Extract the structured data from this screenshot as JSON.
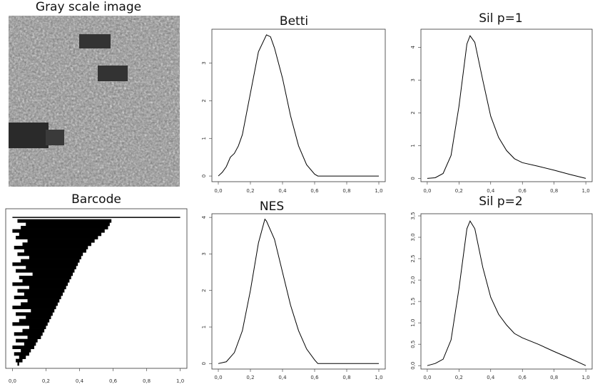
{
  "image": {
    "title": "Gray scale image"
  },
  "chart_data": [
    {
      "type": "barcode",
      "title": "Barcode",
      "births": [
        0.03,
        0.02,
        0.04,
        0.01,
        0.05,
        0.0,
        0.07,
        0.02,
        0.09,
        0.01,
        0.06,
        0.1,
        0.0,
        0.04,
        0.08,
        0.02,
        0.11,
        0.0,
        0.05,
        0.09,
        0.01,
        0.07,
        0.03,
        0.1,
        0.0,
        0.06,
        0.04,
        0.12,
        0.02,
        0.08,
        0.0,
        0.05,
        0.1,
        0.03,
        0.07,
        0.01,
        0.06,
        0.09,
        0.02,
        0.04,
        0.0,
        0.05,
        0.08,
        0.03,
        0.0
      ],
      "deaths": [
        0.04,
        0.06,
        0.08,
        0.1,
        0.11,
        0.13,
        0.14,
        0.15,
        0.17,
        0.18,
        0.19,
        0.2,
        0.21,
        0.22,
        0.23,
        0.24,
        0.25,
        0.26,
        0.27,
        0.28,
        0.29,
        0.3,
        0.31,
        0.32,
        0.33,
        0.34,
        0.35,
        0.36,
        0.37,
        0.38,
        0.39,
        0.4,
        0.41,
        0.42,
        0.44,
        0.45,
        0.47,
        0.49,
        0.51,
        0.53,
        0.55,
        0.57,
        0.58,
        0.59,
        1.0
      ],
      "color": "#000000",
      "xlim": [
        -0.04,
        1.04
      ],
      "xticks": [
        {
          "value": 0,
          "label": "0,0"
        },
        {
          "value": 0.2,
          "label": "0,2"
        },
        {
          "value": 0.4,
          "label": "0,4"
        },
        {
          "value": 0.6,
          "label": "0,6"
        },
        {
          "value": 0.8,
          "label": "0,8"
        },
        {
          "value": 1,
          "label": "1,0"
        }
      ]
    },
    {
      "type": "line",
      "title": "Betti",
      "x": [
        0,
        0.025,
        0.05,
        0.075,
        0.1,
        0.125,
        0.15,
        0.2,
        0.25,
        0.3,
        0.325,
        0.35,
        0.4,
        0.45,
        0.5,
        0.55,
        0.6,
        0.62,
        0.7,
        0.8,
        0.9,
        1.0
      ],
      "values": [
        0,
        0.1,
        0.25,
        0.5,
        0.6,
        0.8,
        1.1,
        2.2,
        3.3,
        3.75,
        3.7,
        3.4,
        2.6,
        1.6,
        0.8,
        0.3,
        0.05,
        0,
        0,
        0,
        0,
        0
      ],
      "color": "#000000",
      "xlim": [
        -0.04,
        1.04
      ],
      "ylim": [
        -0.15,
        3.9
      ],
      "xticks": [
        {
          "value": 0,
          "label": "0,0"
        },
        {
          "value": 0.2,
          "label": "0,2"
        },
        {
          "value": 0.4,
          "label": "0,4"
        },
        {
          "value": 0.6,
          "label": "0,6"
        },
        {
          "value": 0.8,
          "label": "0,8"
        },
        {
          "value": 1,
          "label": "1,0"
        }
      ],
      "yticks": [
        0,
        1,
        2,
        3
      ]
    },
    {
      "type": "line",
      "title": "Sil p=1",
      "x": [
        0,
        0.05,
        0.1,
        0.15,
        0.2,
        0.25,
        0.27,
        0.3,
        0.35,
        0.4,
        0.45,
        0.5,
        0.55,
        0.6,
        0.7,
        0.8,
        0.9,
        1.0
      ],
      "values": [
        0,
        0.02,
        0.15,
        0.7,
        2.2,
        4.1,
        4.35,
        4.15,
        3.0,
        1.9,
        1.25,
        0.85,
        0.6,
        0.48,
        0.37,
        0.25,
        0.12,
        0
      ],
      "color": "#000000",
      "xlim": [
        -0.04,
        1.04
      ],
      "ylim": [
        -0.1,
        4.55
      ],
      "xticks": [
        {
          "value": 0,
          "label": "0,0"
        },
        {
          "value": 0.2,
          "label": "0,2"
        },
        {
          "value": 0.4,
          "label": "0,4"
        },
        {
          "value": 0.6,
          "label": "0,6"
        },
        {
          "value": 0.8,
          "label": "0,8"
        },
        {
          "value": 1,
          "label": "1,0"
        }
      ],
      "yticks": [
        0,
        1,
        2,
        3,
        4
      ]
    },
    {
      "type": "line",
      "title": "NES",
      "x": [
        0,
        0.05,
        0.1,
        0.15,
        0.2,
        0.25,
        0.29,
        0.3,
        0.35,
        0.4,
        0.45,
        0.5,
        0.55,
        0.6,
        0.62,
        0.7,
        0.8,
        0.9,
        1.0
      ],
      "values": [
        0,
        0.05,
        0.3,
        0.9,
        2.0,
        3.3,
        3.95,
        3.9,
        3.4,
        2.5,
        1.6,
        0.9,
        0.4,
        0.1,
        0,
        0,
        0,
        0,
        0
      ],
      "color": "#000000",
      "xlim": [
        -0.04,
        1.04
      ],
      "ylim": [
        -0.15,
        4.1
      ],
      "xticks": [
        {
          "value": 0,
          "label": "0,0"
        },
        {
          "value": 0.2,
          "label": "0,2"
        },
        {
          "value": 0.4,
          "label": "0,4"
        },
        {
          "value": 0.6,
          "label": "0,6"
        },
        {
          "value": 0.8,
          "label": "0,8"
        },
        {
          "value": 1,
          "label": "1,0"
        }
      ],
      "yticks": [
        0,
        1,
        2,
        3,
        4
      ]
    },
    {
      "type": "line",
      "title": "Sil p=2",
      "x": [
        0,
        0.05,
        0.1,
        0.15,
        0.2,
        0.25,
        0.27,
        0.3,
        0.35,
        0.4,
        0.45,
        0.5,
        0.55,
        0.6,
        0.7,
        0.8,
        0.9,
        1.0
      ],
      "values": [
        0,
        0.05,
        0.15,
        0.6,
        1.8,
        3.2,
        3.38,
        3.2,
        2.3,
        1.6,
        1.2,
        0.95,
        0.75,
        0.65,
        0.5,
        0.33,
        0.17,
        0
      ],
      "color": "#000000",
      "xlim": [
        -0.04,
        1.04
      ],
      "ylim": [
        -0.08,
        3.55
      ],
      "xticks": [
        {
          "value": 0,
          "label": "0,0"
        },
        {
          "value": 0.2,
          "label": "0,2"
        },
        {
          "value": 0.4,
          "label": "0,4"
        },
        {
          "value": 0.6,
          "label": "0,6"
        },
        {
          "value": 0.8,
          "label": "0,8"
        },
        {
          "value": 1,
          "label": "1,0"
        }
      ],
      "yticks": [
        {
          "value": 0,
          "label": "0,0"
        },
        {
          "value": 0.5,
          "label": "0,5"
        },
        {
          "value": 1,
          "label": "1,0"
        },
        {
          "value": 1.5,
          "label": "1,5"
        },
        {
          "value": 2,
          "label": "2,0"
        },
        {
          "value": 2.5,
          "label": "2,5"
        },
        {
          "value": 3,
          "label": "3,0"
        },
        {
          "value": 3.5,
          "label": "3,5"
        }
      ]
    }
  ]
}
